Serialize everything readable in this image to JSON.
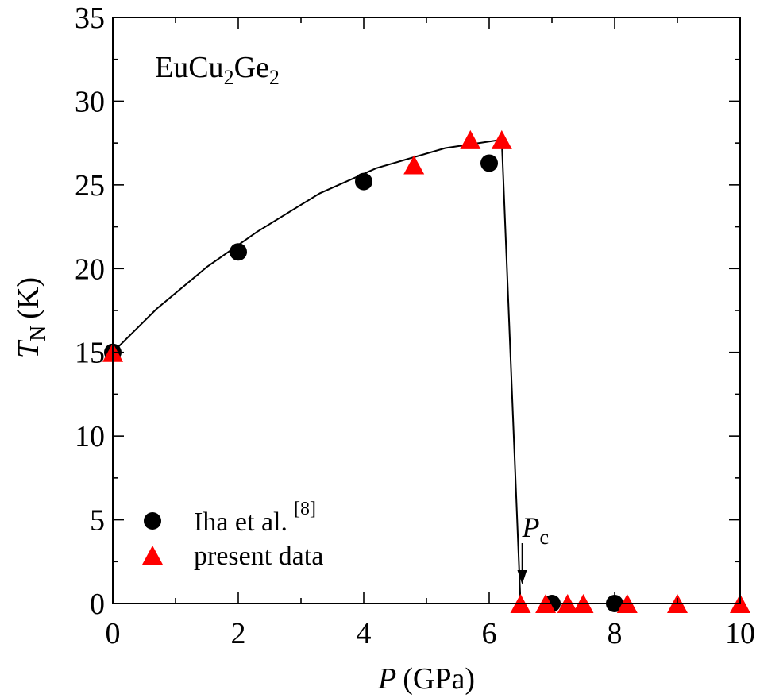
{
  "chart_data": {
    "type": "scatter",
    "xlabel": {
      "var": "P",
      "unit": "(GPa)"
    },
    "ylabel": {
      "var": "T",
      "sub": "N",
      "unit": "(K)"
    },
    "xlim": [
      0,
      10
    ],
    "ylim": [
      0,
      35
    ],
    "xticks": [
      "0",
      "2",
      "4",
      "6",
      "8",
      "10"
    ],
    "yticks": [
      "0",
      "5",
      "10",
      "15",
      "20",
      "25",
      "30",
      "35"
    ],
    "grid": false,
    "compound": {
      "base1": "EuCu",
      "sub1": "2",
      "base2": "Ge",
      "sub2": "2"
    },
    "annotation": {
      "var": "P",
      "sub": "c",
      "x": 6.5
    },
    "legend": {
      "position": "bottom-left"
    },
    "series": [
      {
        "name": "Iha et al.",
        "name_ref": "[8]",
        "marker": "circle",
        "color": "#000000",
        "points": [
          [
            0,
            15.0
          ],
          [
            2,
            21.0
          ],
          [
            4,
            25.2
          ],
          [
            6,
            26.3
          ],
          [
            7,
            0
          ],
          [
            8,
            0
          ]
        ]
      },
      {
        "name": "present data",
        "marker": "triangle",
        "color": "#ff0000",
        "points": [
          [
            0,
            15.0
          ],
          [
            4.8,
            26.2
          ],
          [
            5.7,
            27.7
          ],
          [
            6.2,
            27.7
          ],
          [
            6.5,
            0
          ],
          [
            6.9,
            0
          ],
          [
            7.25,
            0
          ],
          [
            7.5,
            0
          ],
          [
            8.2,
            0
          ],
          [
            9.0,
            0
          ],
          [
            10.0,
            0
          ]
        ]
      }
    ],
    "fit_line": {
      "color": "#000000",
      "points": [
        [
          0,
          15.0
        ],
        [
          0.7,
          17.6
        ],
        [
          1.5,
          20.1
        ],
        [
          2.3,
          22.2
        ],
        [
          3.3,
          24.5
        ],
        [
          4.2,
          26.0
        ],
        [
          5.3,
          27.2
        ],
        [
          6.2,
          27.7
        ],
        [
          6.5,
          0
        ],
        [
          10,
          0
        ]
      ]
    }
  }
}
